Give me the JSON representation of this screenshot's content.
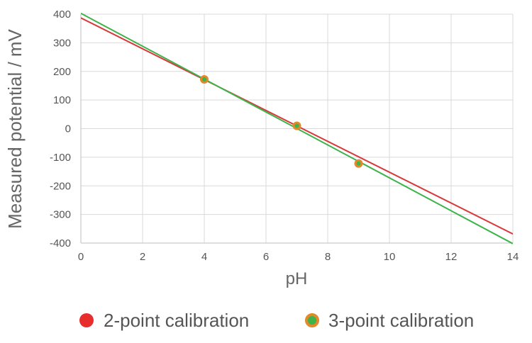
{
  "chart_data": {
    "type": "scatter",
    "title": "",
    "xlabel": "pH",
    "ylabel": "Measured potential / mV",
    "xlim": [
      0,
      14
    ],
    "ylim": [
      -400,
      400
    ],
    "xticks": [
      0,
      2,
      4,
      6,
      8,
      10,
      12,
      14
    ],
    "yticks": [
      400,
      300,
      200,
      100,
      0,
      -100,
      -200,
      -300,
      -400
    ],
    "grid": true,
    "legend_position": "bottom",
    "series": [
      {
        "name": "2-point calibration",
        "kind": "line",
        "color": "#d9383a",
        "x": [
          0,
          14
        ],
        "y": [
          387,
          -368
        ]
      },
      {
        "name": "3-point calibration",
        "kind": "line",
        "color": "#3db34a",
        "x": [
          0,
          14
        ],
        "y": [
          403,
          -402
        ]
      }
    ],
    "points": {
      "fill": "#3db34a",
      "stroke": "#e08a2c",
      "x": [
        4,
        7,
        9
      ],
      "y": [
        172,
        10,
        -122
      ]
    },
    "legend": [
      {
        "label": "2-point calibration",
        "marker": "filled-circle",
        "color": "#e82d2d"
      },
      {
        "label": "3-point calibration",
        "marker": "ringed-circle",
        "fill": "#3db34a",
        "stroke": "#e08a2c"
      }
    ]
  }
}
